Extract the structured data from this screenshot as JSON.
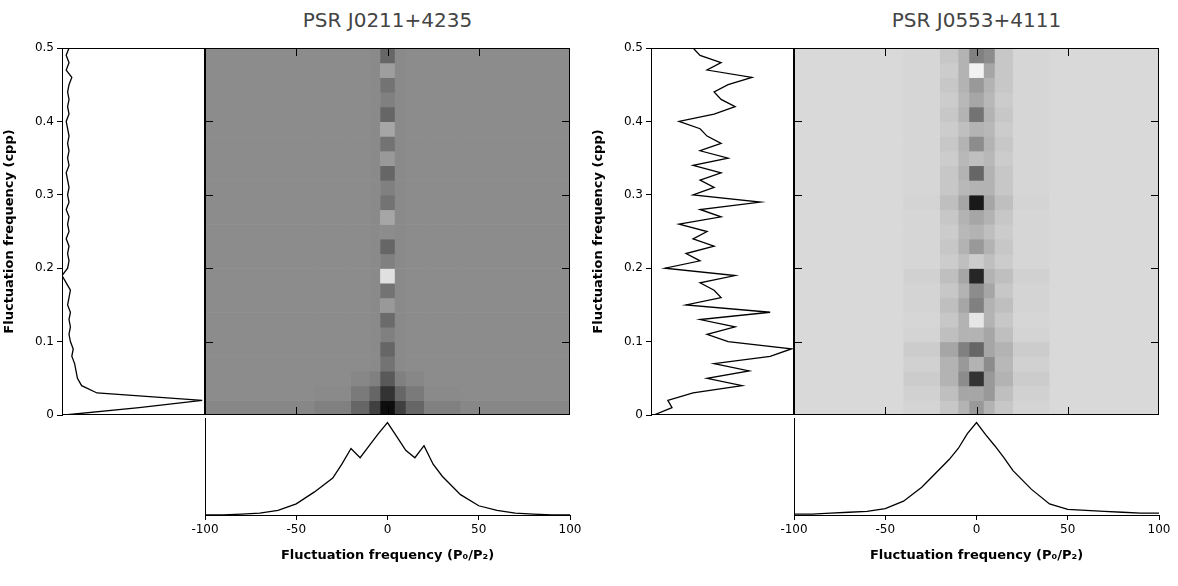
{
  "chart_data": [
    {
      "type": "heatmap",
      "title": "PSR J0211+4235",
      "color": "#000000",
      "xlabel": "Fluctuation frequency (P₀/P₂)",
      "ylabel": "Fluctuation frequency (cpp)",
      "xlim": [
        -100,
        100
      ],
      "xticks": [
        -100,
        -50,
        0,
        50,
        100
      ],
      "ylim": [
        0,
        0.5
      ],
      "yticks": [
        0,
        0.1,
        0.2,
        0.3,
        0.4,
        0.5
      ],
      "cells": {
        "x_edges": [
          -100,
          -40,
          -20,
          -10,
          -4,
          4,
          10,
          20,
          40,
          100
        ],
        "y_edges": [
          0,
          0.02,
          0.04,
          0.06,
          0.08,
          0.1,
          0.12,
          0.14,
          0.16,
          0.18,
          0.2,
          0.22,
          0.24,
          0.26,
          0.28,
          0.3,
          0.32,
          0.34,
          0.36,
          0.38,
          0.4,
          0.42,
          0.44,
          0.46,
          0.48,
          0.5
        ],
        "zlim": [
          0,
          1
        ],
        "values": [
          [
            0.47,
            0.5,
            0.6,
            0.75,
            0.95,
            0.75,
            0.6,
            0.5,
            0.47
          ],
          [
            0.45,
            0.46,
            0.52,
            0.6,
            0.8,
            0.6,
            0.52,
            0.46,
            0.45
          ],
          [
            0.45,
            0.45,
            0.47,
            0.5,
            0.65,
            0.5,
            0.47,
            0.45,
            0.45
          ],
          [
            0.45,
            0.45,
            0.45,
            0.46,
            0.55,
            0.46,
            0.45,
            0.45,
            0.45
          ],
          [
            0.45,
            0.45,
            0.45,
            0.46,
            0.6,
            0.46,
            0.45,
            0.45,
            0.45
          ],
          [
            0.45,
            0.45,
            0.45,
            0.46,
            0.5,
            0.46,
            0.45,
            0.45,
            0.45
          ],
          [
            0.45,
            0.45,
            0.45,
            0.46,
            0.58,
            0.46,
            0.45,
            0.45,
            0.45
          ],
          [
            0.45,
            0.45,
            0.45,
            0.46,
            0.4,
            0.46,
            0.45,
            0.45,
            0.45
          ],
          [
            0.45,
            0.45,
            0.45,
            0.46,
            0.55,
            0.46,
            0.45,
            0.45,
            0.45
          ],
          [
            0.45,
            0.45,
            0.45,
            0.46,
            0.12,
            0.46,
            0.45,
            0.45,
            0.45
          ],
          [
            0.45,
            0.45,
            0.45,
            0.46,
            0.5,
            0.46,
            0.45,
            0.45,
            0.45
          ],
          [
            0.45,
            0.45,
            0.45,
            0.46,
            0.6,
            0.46,
            0.45,
            0.45,
            0.45
          ],
          [
            0.45,
            0.45,
            0.45,
            0.46,
            0.45,
            0.46,
            0.45,
            0.45,
            0.45
          ],
          [
            0.45,
            0.45,
            0.45,
            0.46,
            0.35,
            0.46,
            0.45,
            0.45,
            0.45
          ],
          [
            0.45,
            0.45,
            0.45,
            0.46,
            0.55,
            0.46,
            0.45,
            0.45,
            0.45
          ],
          [
            0.45,
            0.45,
            0.45,
            0.46,
            0.5,
            0.46,
            0.45,
            0.45,
            0.45
          ],
          [
            0.45,
            0.45,
            0.45,
            0.46,
            0.6,
            0.46,
            0.45,
            0.45,
            0.45
          ],
          [
            0.45,
            0.45,
            0.45,
            0.46,
            0.4,
            0.46,
            0.45,
            0.45,
            0.45
          ],
          [
            0.45,
            0.45,
            0.45,
            0.46,
            0.55,
            0.46,
            0.45,
            0.45,
            0.45
          ],
          [
            0.45,
            0.45,
            0.45,
            0.46,
            0.35,
            0.46,
            0.45,
            0.45,
            0.45
          ],
          [
            0.45,
            0.45,
            0.45,
            0.46,
            0.6,
            0.46,
            0.45,
            0.45,
            0.45
          ],
          [
            0.45,
            0.45,
            0.45,
            0.46,
            0.5,
            0.46,
            0.45,
            0.45,
            0.45
          ],
          [
            0.45,
            0.45,
            0.45,
            0.46,
            0.55,
            0.46,
            0.45,
            0.45,
            0.45
          ],
          [
            0.45,
            0.45,
            0.45,
            0.46,
            0.38,
            0.46,
            0.45,
            0.45,
            0.45
          ],
          [
            0.45,
            0.45,
            0.45,
            0.46,
            0.6,
            0.46,
            0.45,
            0.45,
            0.45
          ]
        ]
      },
      "side_profile": {
        "lim": [
          0,
          1.02
        ],
        "y": [
          0,
          0.01,
          0.02,
          0.03,
          0.04,
          0.05,
          0.06,
          0.07,
          0.08,
          0.09,
          0.1,
          0.11,
          0.12,
          0.13,
          0.14,
          0.15,
          0.16,
          0.17,
          0.18,
          0.19,
          0.2,
          0.21,
          0.22,
          0.23,
          0.24,
          0.25,
          0.26,
          0.27,
          0.28,
          0.29,
          0.3,
          0.31,
          0.32,
          0.33,
          0.34,
          0.35,
          0.36,
          0.37,
          0.38,
          0.39,
          0.4,
          0.41,
          0.42,
          0.43,
          0.44,
          0.45,
          0.46,
          0.47,
          0.48,
          0.49,
          0.5
        ],
        "values": [
          0.02,
          0.55,
          1.0,
          0.25,
          0.14,
          0.11,
          0.1,
          0.09,
          0.07,
          0.08,
          0.06,
          0.05,
          0.06,
          0.05,
          0.06,
          0.04,
          0.05,
          0.06,
          0.03,
          0.0,
          0.04,
          0.05,
          0.04,
          0.05,
          0.03,
          0.05,
          0.04,
          0.05,
          0.03,
          0.05,
          0.04,
          0.05,
          0.04,
          0.03,
          0.05,
          0.04,
          0.05,
          0.04,
          0.05,
          0.04,
          0.03,
          0.05,
          0.04,
          0.05,
          0.04,
          0.05,
          0.07,
          0.03,
          0.05,
          0.03,
          0.05
        ]
      },
      "bottom_profile": {
        "lim": [
          0,
          1.05
        ],
        "x": [
          -100,
          -90,
          -80,
          -70,
          -60,
          -50,
          -40,
          -30,
          -25,
          -20,
          -15,
          -10,
          -5,
          0,
          5,
          10,
          15,
          20,
          25,
          30,
          40,
          50,
          60,
          70,
          80,
          90,
          100
        ],
        "values": [
          0,
          0,
          0.01,
          0.02,
          0.05,
          0.12,
          0.25,
          0.4,
          0.55,
          0.72,
          0.62,
          0.75,
          0.88,
          1.0,
          0.85,
          0.7,
          0.62,
          0.75,
          0.55,
          0.42,
          0.22,
          0.1,
          0.05,
          0.02,
          0.01,
          0,
          0
        ]
      }
    },
    {
      "type": "heatmap",
      "title": "PSR J0553+4111",
      "color": "#000000",
      "xlabel": "Fluctuation frequency (P₀/P₂)",
      "ylabel": "Fluctuation frequency (cpp)",
      "xlim": [
        -100,
        100
      ],
      "xticks": [
        -100,
        -50,
        0,
        50,
        100
      ],
      "ylim": [
        0,
        0.5
      ],
      "yticks": [
        0,
        0.1,
        0.2,
        0.3,
        0.4,
        0.5
      ],
      "cells": {
        "x_edges": [
          -100,
          -40,
          -20,
          -10,
          -4,
          4,
          10,
          20,
          40,
          100
        ],
        "y_edges": [
          0,
          0.02,
          0.04,
          0.06,
          0.08,
          0.1,
          0.12,
          0.14,
          0.16,
          0.18,
          0.2,
          0.22,
          0.24,
          0.26,
          0.28,
          0.3,
          0.32,
          0.34,
          0.36,
          0.38,
          0.4,
          0.42,
          0.44,
          0.46,
          0.48,
          0.5
        ],
        "zlim": [
          0,
          1
        ],
        "values": [
          [
            0.15,
            0.17,
            0.22,
            0.3,
            0.4,
            0.3,
            0.22,
            0.17,
            0.15
          ],
          [
            0.15,
            0.18,
            0.25,
            0.35,
            0.35,
            0.4,
            0.25,
            0.18,
            0.15
          ],
          [
            0.15,
            0.2,
            0.3,
            0.45,
            0.8,
            0.4,
            0.3,
            0.2,
            0.15
          ],
          [
            0.15,
            0.18,
            0.3,
            0.4,
            0.3,
            0.45,
            0.28,
            0.18,
            0.15
          ],
          [
            0.15,
            0.2,
            0.35,
            0.5,
            0.6,
            0.35,
            0.3,
            0.2,
            0.15
          ],
          [
            0.15,
            0.17,
            0.25,
            0.3,
            0.3,
            0.35,
            0.25,
            0.17,
            0.15
          ],
          [
            0.15,
            0.16,
            0.22,
            0.3,
            0.1,
            0.3,
            0.22,
            0.16,
            0.15
          ],
          [
            0.15,
            0.17,
            0.25,
            0.35,
            0.5,
            0.3,
            0.25,
            0.17,
            0.15
          ],
          [
            0.15,
            0.17,
            0.22,
            0.3,
            0.45,
            0.35,
            0.22,
            0.17,
            0.15
          ],
          [
            0.15,
            0.18,
            0.25,
            0.35,
            0.85,
            0.3,
            0.25,
            0.18,
            0.15
          ],
          [
            0.15,
            0.16,
            0.2,
            0.25,
            0.2,
            0.25,
            0.2,
            0.16,
            0.15
          ],
          [
            0.15,
            0.16,
            0.22,
            0.3,
            0.4,
            0.3,
            0.22,
            0.16,
            0.15
          ],
          [
            0.15,
            0.16,
            0.2,
            0.28,
            0.3,
            0.25,
            0.2,
            0.16,
            0.15
          ],
          [
            0.15,
            0.16,
            0.22,
            0.3,
            0.35,
            0.3,
            0.22,
            0.16,
            0.15
          ],
          [
            0.15,
            0.17,
            0.25,
            0.35,
            0.9,
            0.35,
            0.25,
            0.17,
            0.15
          ],
          [
            0.15,
            0.16,
            0.22,
            0.28,
            0.3,
            0.3,
            0.22,
            0.16,
            0.15
          ],
          [
            0.15,
            0.16,
            0.22,
            0.3,
            0.6,
            0.3,
            0.22,
            0.16,
            0.15
          ],
          [
            0.15,
            0.16,
            0.2,
            0.28,
            0.25,
            0.28,
            0.2,
            0.16,
            0.15
          ],
          [
            0.15,
            0.16,
            0.22,
            0.3,
            0.45,
            0.3,
            0.22,
            0.16,
            0.15
          ],
          [
            0.15,
            0.16,
            0.2,
            0.25,
            0.3,
            0.28,
            0.2,
            0.16,
            0.15
          ],
          [
            0.15,
            0.16,
            0.22,
            0.3,
            0.55,
            0.3,
            0.22,
            0.16,
            0.15
          ],
          [
            0.15,
            0.16,
            0.2,
            0.28,
            0.35,
            0.28,
            0.2,
            0.16,
            0.15
          ],
          [
            0.15,
            0.16,
            0.22,
            0.3,
            0.4,
            0.3,
            0.22,
            0.16,
            0.15
          ],
          [
            0.15,
            0.16,
            0.2,
            0.3,
            0.05,
            0.35,
            0.22,
            0.16,
            0.15
          ],
          [
            0.15,
            0.16,
            0.22,
            0.3,
            0.5,
            0.45,
            0.22,
            0.16,
            0.15
          ]
        ]
      },
      "side_profile": {
        "lim": [
          0,
          1.02
        ],
        "y": [
          0,
          0.01,
          0.02,
          0.03,
          0.04,
          0.05,
          0.06,
          0.07,
          0.08,
          0.09,
          0.1,
          0.11,
          0.12,
          0.13,
          0.14,
          0.15,
          0.16,
          0.17,
          0.18,
          0.19,
          0.2,
          0.21,
          0.22,
          0.23,
          0.24,
          0.25,
          0.26,
          0.27,
          0.28,
          0.29,
          0.3,
          0.31,
          0.32,
          0.33,
          0.34,
          0.35,
          0.36,
          0.37,
          0.38,
          0.39,
          0.4,
          0.41,
          0.42,
          0.43,
          0.44,
          0.45,
          0.46,
          0.47,
          0.48,
          0.49,
          0.5
        ],
        "values": [
          0.02,
          0.15,
          0.12,
          0.3,
          0.65,
          0.4,
          0.7,
          0.45,
          0.85,
          1.0,
          0.55,
          0.4,
          0.6,
          0.35,
          0.85,
          0.25,
          0.5,
          0.45,
          0.35,
          0.6,
          0.1,
          0.35,
          0.25,
          0.45,
          0.3,
          0.4,
          0.2,
          0.5,
          0.35,
          0.78,
          0.3,
          0.45,
          0.35,
          0.5,
          0.3,
          0.55,
          0.35,
          0.5,
          0.4,
          0.35,
          0.2,
          0.45,
          0.6,
          0.5,
          0.45,
          0.55,
          0.72,
          0.4,
          0.5,
          0.35,
          0.3
        ]
      },
      "bottom_profile": {
        "lim": [
          0,
          1.05
        ],
        "x": [
          -100,
          -90,
          -80,
          -70,
          -60,
          -50,
          -40,
          -30,
          -25,
          -20,
          -15,
          -10,
          -5,
          0,
          5,
          10,
          15,
          20,
          25,
          30,
          40,
          50,
          60,
          70,
          80,
          90,
          100
        ],
        "values": [
          0.01,
          0.01,
          0.02,
          0.03,
          0.04,
          0.07,
          0.15,
          0.3,
          0.4,
          0.5,
          0.6,
          0.72,
          0.88,
          1.0,
          0.87,
          0.75,
          0.62,
          0.48,
          0.38,
          0.28,
          0.12,
          0.06,
          0.05,
          0.04,
          0.03,
          0.02,
          0.02
        ]
      }
    }
  ]
}
